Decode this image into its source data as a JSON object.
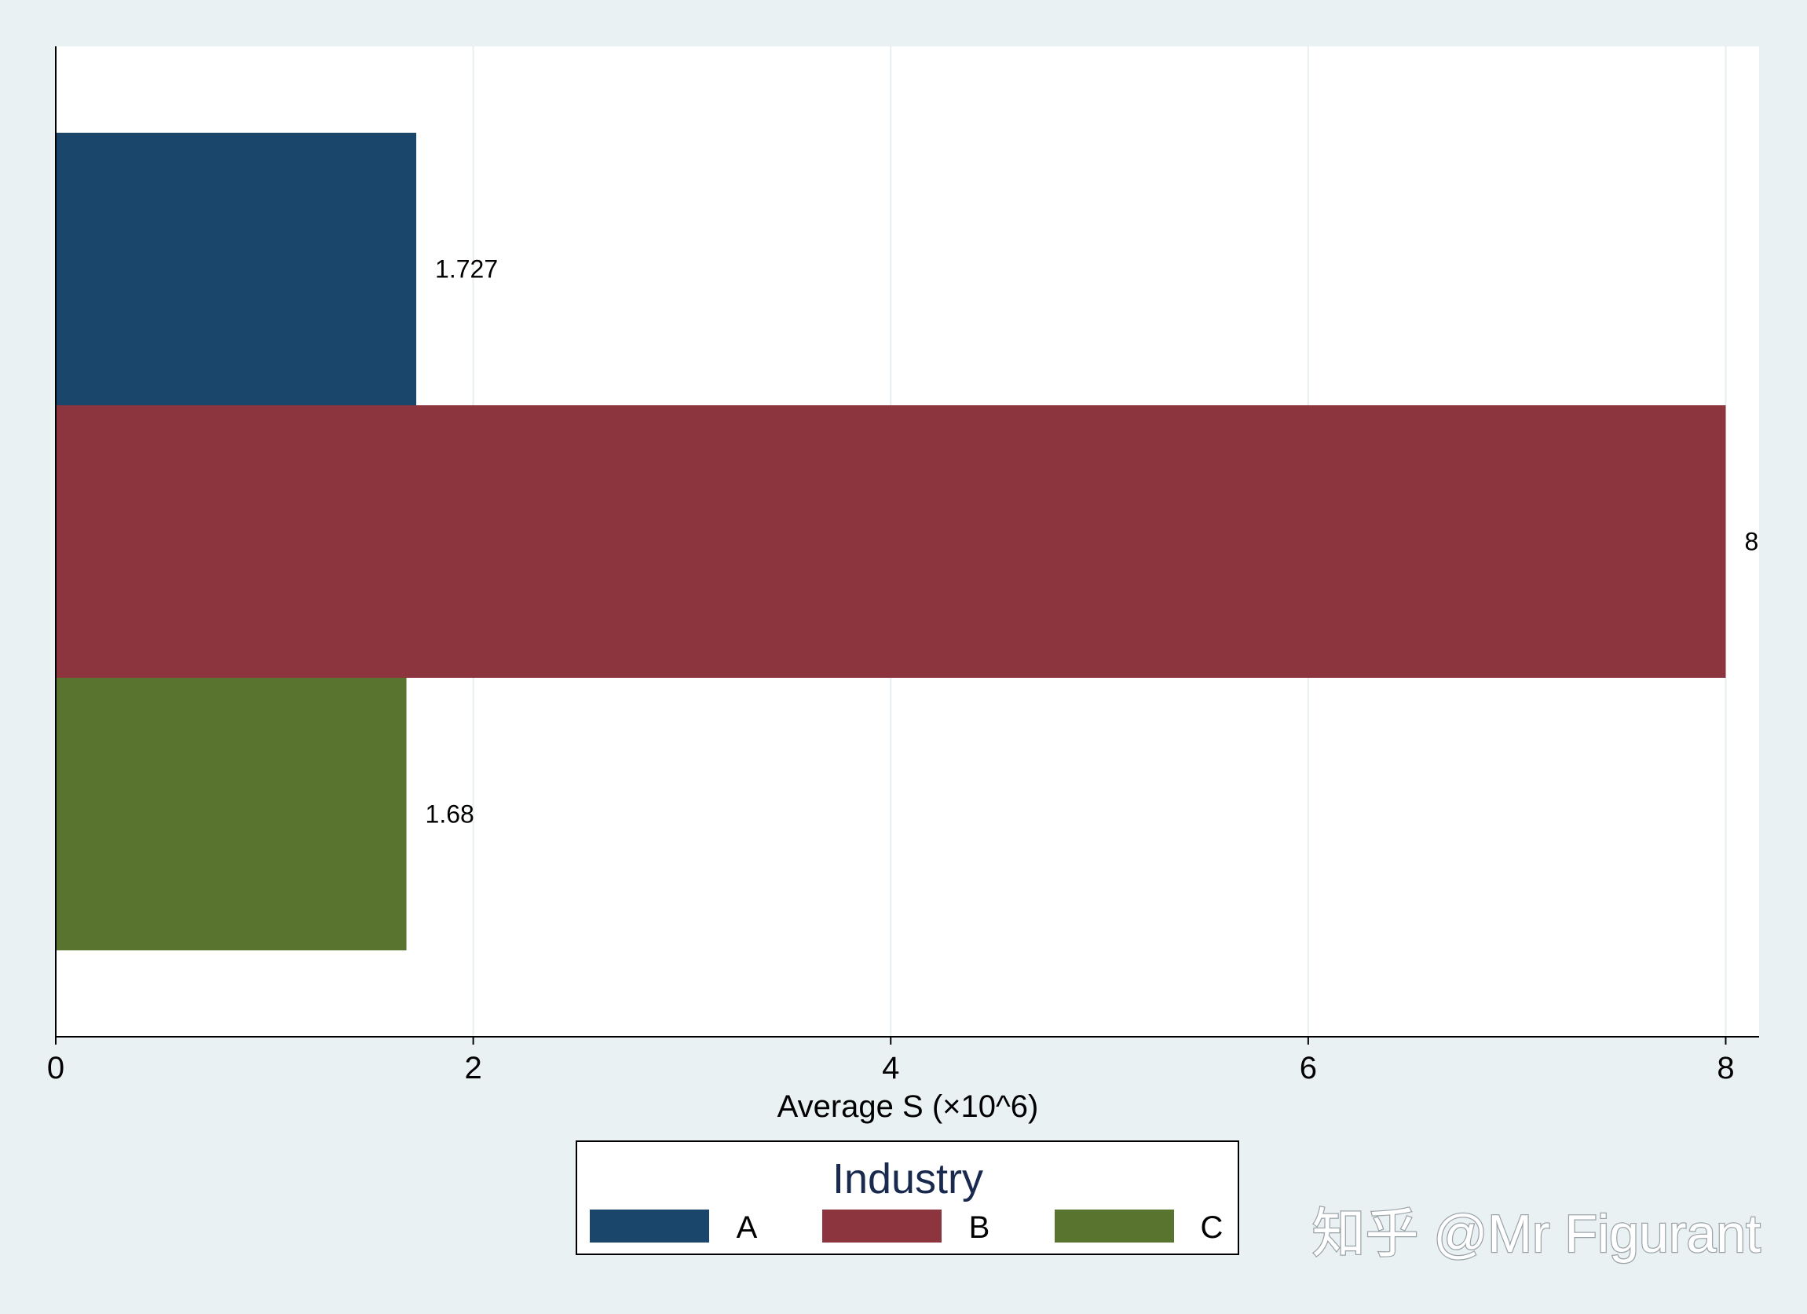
{
  "chart_data": {
    "type": "bar",
    "orientation": "horizontal",
    "categories": [
      "A",
      "B",
      "C"
    ],
    "values": [
      1.727,
      8,
      1.68
    ],
    "value_labels": [
      "1.727",
      "8",
      "1.68"
    ],
    "colors": [
      "#1b466c",
      "#8c353e",
      "#58742f"
    ],
    "xlabel": "Average S (×10^6)",
    "xlim": [
      0,
      8.16
    ],
    "xticks": [
      0,
      2,
      4,
      6,
      8
    ],
    "grid": true,
    "legend": {
      "title": "Industry",
      "entries": [
        "A",
        "B",
        "C"
      ],
      "placement": "bottom-center"
    }
  },
  "watermark": "知乎 @Mr Figurant",
  "colors": {
    "background": "#eaf1f3",
    "plot_background": "#ffffff",
    "gridline": "#e6eef1"
  }
}
